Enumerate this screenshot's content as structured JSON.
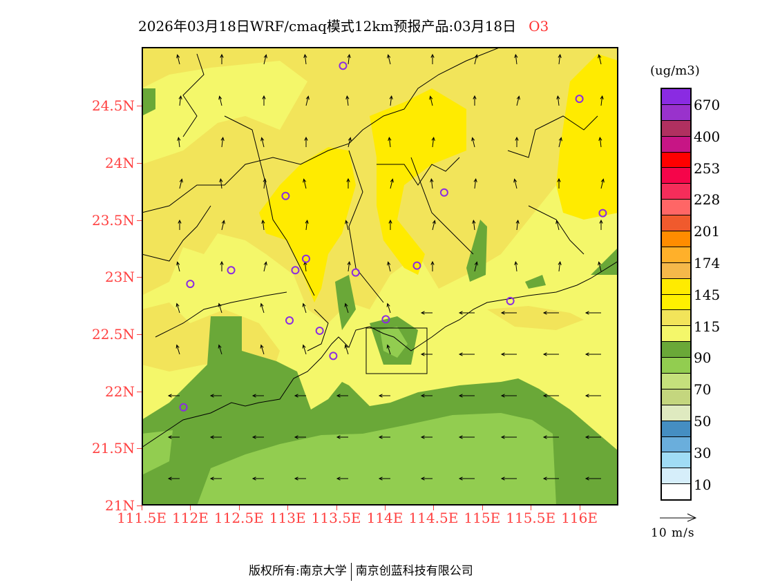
{
  "title": {
    "main": "2026年03月18日WRF/cmaq模式12km预报产品:03月18日",
    "species": "O3"
  },
  "map": {
    "lon_range": [
      111.5,
      116.5
    ],
    "lat_range": [
      21.0,
      25.0
    ],
    "x_ticks": [
      "111.5E",
      "112E",
      "112.5E",
      "113E",
      "113.5E",
      "114E",
      "114.5E",
      "115E",
      "115.5E",
      "116E"
    ],
    "x_tick_values": [
      111.5,
      112,
      112.5,
      113,
      113.5,
      114,
      114.5,
      115,
      115.5,
      116
    ],
    "y_ticks": [
      "21N",
      "21.5N",
      "22N",
      "22.5N",
      "23N",
      "23.5N",
      "24N",
      "24.5N"
    ],
    "y_tick_values": [
      21,
      21.5,
      22,
      22.5,
      23,
      23.5,
      24,
      24.5
    ],
    "stations": [
      [
        113.57,
        24.85
      ],
      [
        116.0,
        24.56
      ],
      [
        112.98,
        23.71
      ],
      [
        114.61,
        23.74
      ],
      [
        116.24,
        23.56
      ],
      [
        113.19,
        23.16
      ],
      [
        112.42,
        23.06
      ],
      [
        113.08,
        23.06
      ],
      [
        113.7,
        23.04
      ],
      [
        114.33,
        23.1
      ],
      [
        112.0,
        22.94
      ],
      [
        115.29,
        22.79
      ],
      [
        114.01,
        22.63
      ],
      [
        113.02,
        22.62
      ],
      [
        113.33,
        22.53
      ],
      [
        113.47,
        22.31
      ],
      [
        111.93,
        21.86
      ]
    ],
    "station_color": "#8a2be2"
  },
  "colorbar": {
    "unit": "(ug/m3)",
    "colors": [
      "#8a2be2",
      "#9932cc",
      "#b03060",
      "#c71585",
      "#ff0000",
      "#f5054a",
      "#f52d5a",
      "#ff6666",
      "#f05a2d",
      "#ff8c00",
      "#ffb02a",
      "#f5b84a",
      "#ffeb00",
      "#fff000",
      "#f2e45a",
      "#f4f76a",
      "#6aa838",
      "#92cd50",
      "#c5e07c",
      "#c4d67e",
      "#dfeac0",
      "#458ec2",
      "#6aaedc",
      "#a0dcf5",
      "#d6eefa",
      "#ffffff"
    ],
    "labels": [
      "670",
      "400",
      "253",
      "228",
      "201",
      "174",
      "145",
      "115",
      "90",
      "70",
      "50",
      "30",
      "10"
    ]
  },
  "wind_reference": {
    "label": "10 m/s"
  },
  "footer": {
    "left": "版权所有:南京大学",
    "right": "南京创蓝科技有限公司"
  }
}
